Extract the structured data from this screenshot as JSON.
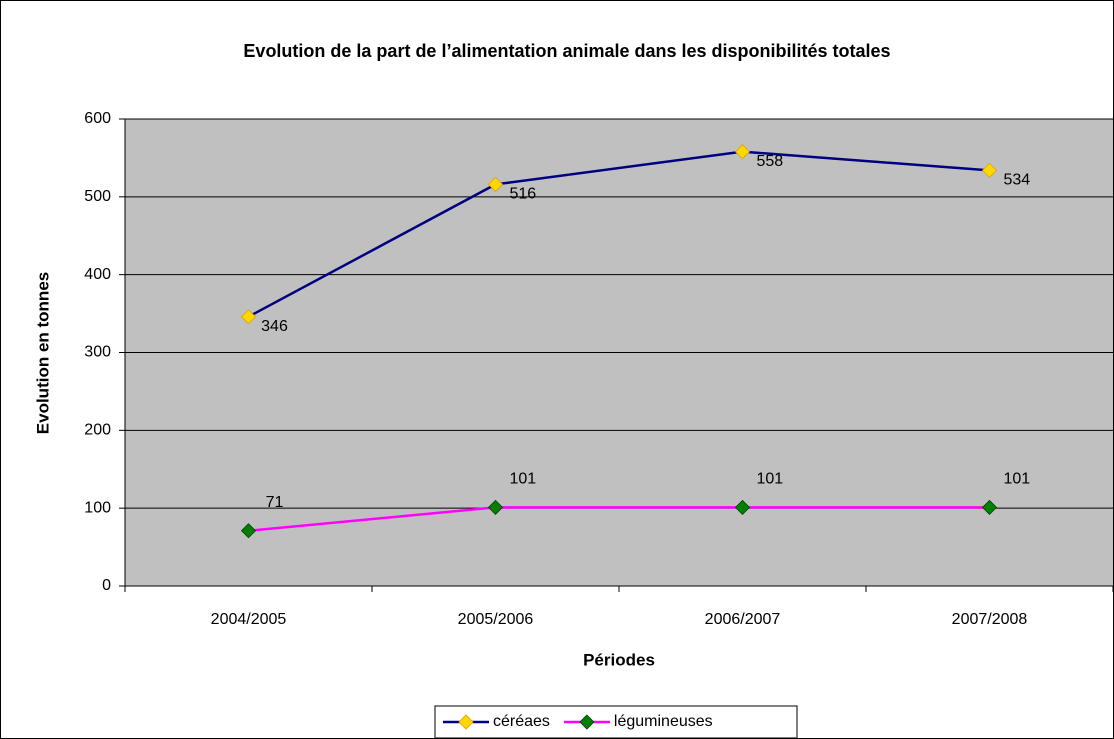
{
  "chart_data": {
    "type": "line",
    "title": "Evolution de la part de l’alimentation animale dans les disponibilités totales",
    "x_label": "Périodes",
    "y_label": "Evolution en tonnes",
    "categories": [
      "2004/2005",
      "2005/2006",
      "2006/2007",
      "2007/2008"
    ],
    "series": [
      {
        "name": "céréaes",
        "color": "#000080",
        "marker_color": "#FFD700",
        "values": [
          346,
          516,
          558,
          534
        ]
      },
      {
        "name": "légumineuses",
        "color": "#FF00FF",
        "marker_color": "#008000",
        "values": [
          71,
          101,
          101,
          101
        ]
      }
    ],
    "ylim": [
      0,
      600
    ],
    "yticks": [
      0,
      100,
      200,
      300,
      400,
      500,
      600
    ],
    "grid": true,
    "plot_background": "#C0C0C0",
    "legend": "bottom"
  }
}
